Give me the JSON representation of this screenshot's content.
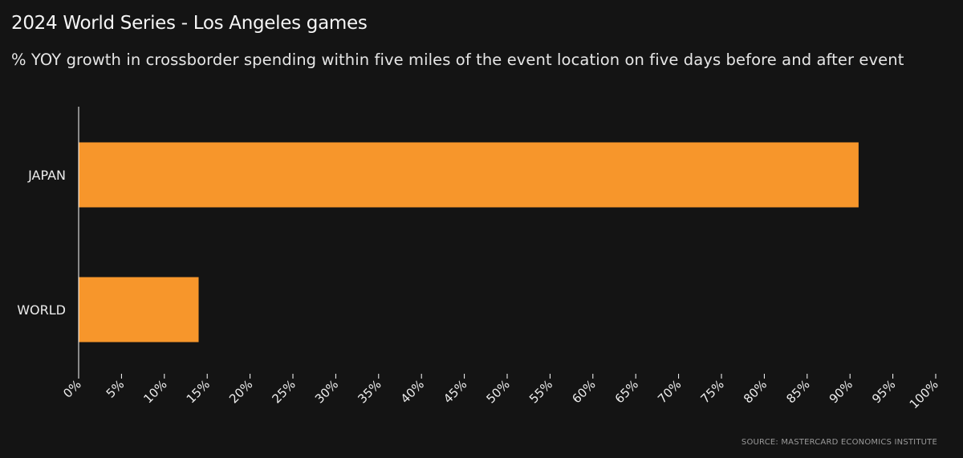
{
  "chart_data": {
    "type": "bar",
    "orientation": "horizontal",
    "title": "2024 World Series - Los Angeles games",
    "subtitle": "% YOY growth in crossborder spending within five miles of the event location on five days before and after event",
    "categories": [
      "JAPAN",
      "WORLD"
    ],
    "values": [
      91,
      14
    ],
    "xlim": [
      0,
      100
    ],
    "x_ticks": [
      "0%",
      "5%",
      "10%",
      "15%",
      "20%",
      "25%",
      "30%",
      "35%",
      "40%",
      "45%",
      "50%",
      "55%",
      "60%",
      "65%",
      "70%",
      "75%",
      "80%",
      "85%",
      "90%",
      "95%",
      "100%"
    ],
    "grid": false,
    "bar_color": "#f7962b",
    "axis_color": "#ffffff",
    "source": "SOURCE: MASTERCARD ECONOMICS INSTITUTE"
  }
}
